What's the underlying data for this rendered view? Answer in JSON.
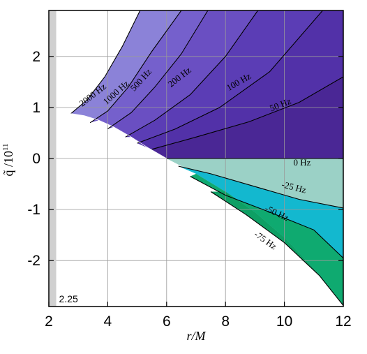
{
  "chart_data": {
    "type": "area",
    "title": "",
    "xlabel": "r/M",
    "ylabel": "q̃ /10^11",
    "ylabel_main": "q̃ /10",
    "ylabel_exp": "11",
    "xlim": [
      2,
      12
    ],
    "ylim": [
      -2.9,
      2.9
    ],
    "x_ticks": [
      "2",
      "4",
      "6",
      "8",
      "10",
      "12"
    ],
    "y_ticks": [
      "-2",
      "-1",
      "0",
      "1",
      "2"
    ],
    "x_tick_values": [
      2,
      4,
      6,
      8,
      10,
      12
    ],
    "y_tick_values": [
      -2,
      -1,
      0,
      1,
      2
    ],
    "grid": true,
    "excluded_region_label": "2.25",
    "excluded_region_x": [
      2,
      2.25
    ],
    "series": [
      {
        "name": "2000 Hz",
        "color": "#8b82d8",
        "level": 2000
      },
      {
        "name": "1000 Hz",
        "color": "#7560cc",
        "level": 1000
      },
      {
        "name": "500 Hz",
        "color": "#6a4fc2",
        "level": 500
      },
      {
        "name": "200 Hz",
        "color": "#5b3db5",
        "level": 200
      },
      {
        "name": "100 Hz",
        "color": "#5231a8",
        "level": 100
      },
      {
        "name": "50 Hz",
        "color": "#4a2795",
        "level": 50
      },
      {
        "name": "0 Hz",
        "color": "#9bd1c6",
        "level": 0
      },
      {
        "name": "-25 Hz",
        "color": "#13b8cf",
        "level": -25
      },
      {
        "name": "-50 Hz",
        "color": "#0faa70",
        "level": -50
      },
      {
        "name": "-75 Hz",
        "color": "#0e9f64",
        "level": -75
      }
    ],
    "contours": [
      {
        "label": "2000 Hz",
        "points": [
          [
            2.75,
            0.88
          ],
          [
            3.3,
            1.15
          ],
          [
            3.9,
            1.6
          ],
          [
            4.5,
            2.2
          ],
          [
            5.1,
            2.9
          ]
        ]
      },
      {
        "label": "1000 Hz",
        "points": [
          [
            3.4,
            0.7
          ],
          [
            4.0,
            0.93
          ],
          [
            4.7,
            1.4
          ],
          [
            5.5,
            2.1
          ],
          [
            6.5,
            2.9
          ]
        ]
      },
      {
        "label": "500 Hz",
        "points": [
          [
            4.0,
            0.58
          ],
          [
            4.8,
            0.9
          ],
          [
            5.6,
            1.4
          ],
          [
            6.5,
            2.05
          ],
          [
            7.4,
            2.9
          ]
        ]
      },
      {
        "label": "200 Hz",
        "points": [
          [
            4.6,
            0.42
          ],
          [
            5.6,
            0.75
          ],
          [
            6.8,
            1.25
          ],
          [
            8.0,
            2.0
          ],
          [
            9.1,
            2.9
          ]
        ]
      },
      {
        "label": "100 Hz",
        "points": [
          [
            5.0,
            0.3
          ],
          [
            6.3,
            0.58
          ],
          [
            7.8,
            1.0
          ],
          [
            9.5,
            1.7
          ],
          [
            11.3,
            2.9
          ]
        ]
      },
      {
        "label": "50 Hz",
        "points": [
          [
            5.5,
            0.18
          ],
          [
            7.0,
            0.42
          ],
          [
            8.8,
            0.72
          ],
          [
            10.5,
            1.1
          ],
          [
            12.0,
            1.6
          ]
        ]
      },
      {
        "label": "-25 Hz",
        "points": [
          [
            6.4,
            -0.15
          ],
          [
            7.5,
            -0.3
          ],
          [
            9.0,
            -0.55
          ],
          [
            10.5,
            -0.8
          ],
          [
            12.0,
            -0.97
          ]
        ]
      },
      {
        "label": "-50 Hz",
        "points": [
          [
            6.8,
            -0.35
          ],
          [
            8.0,
            -0.72
          ],
          [
            9.5,
            -1.05
          ],
          [
            11.0,
            -1.4
          ],
          [
            12.0,
            -1.95
          ]
        ]
      },
      {
        "label": "-75 Hz",
        "points": [
          [
            7.5,
            -0.65
          ],
          [
            8.7,
            -1.1
          ],
          [
            10.0,
            -1.65
          ],
          [
            11.2,
            -2.3
          ],
          [
            12.0,
            -2.88
          ]
        ]
      }
    ]
  }
}
